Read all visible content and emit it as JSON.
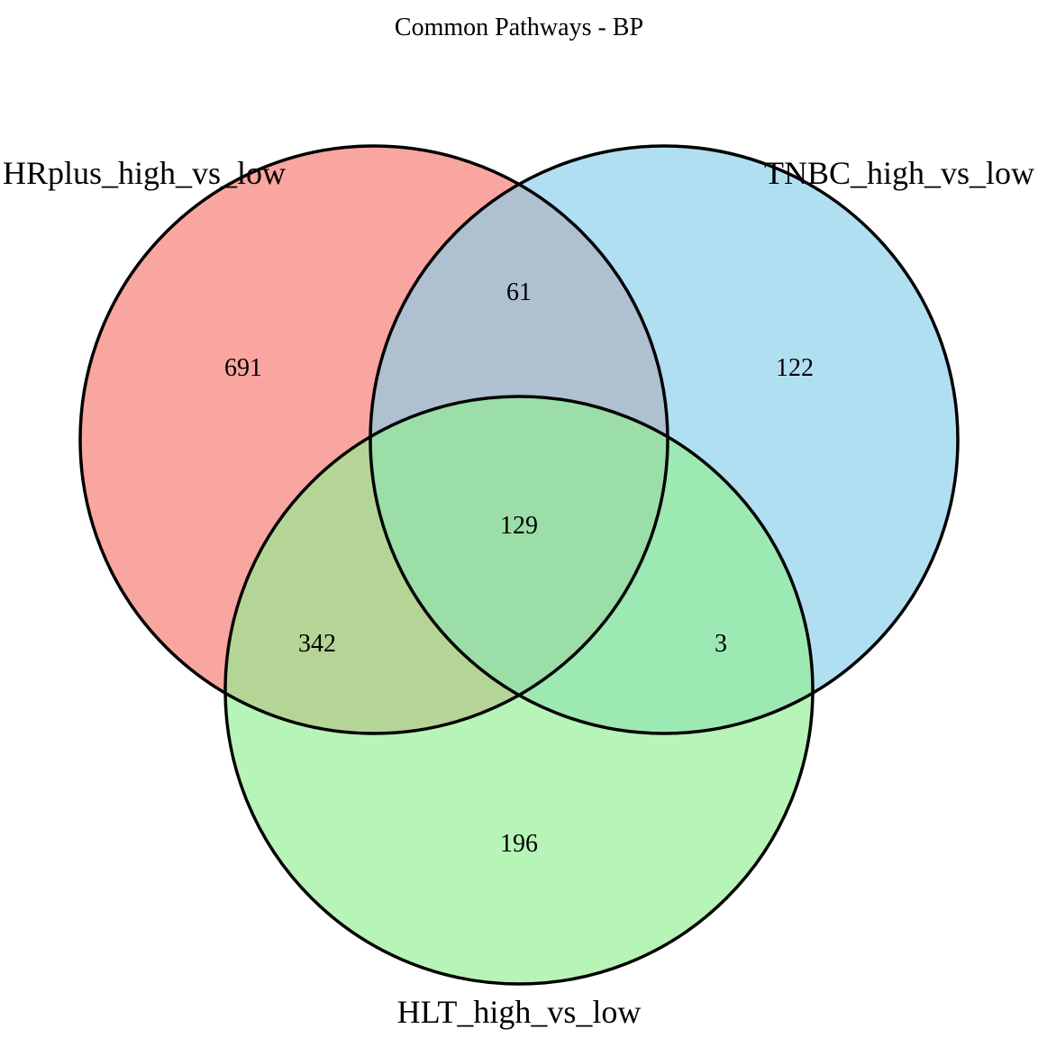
{
  "title": "Common Pathways - BP",
  "sets": [
    {
      "name": "HRplus_high_vs_low",
      "color": "#F8766D",
      "fill_opacity": 0.65
    },
    {
      "name": "TNBC_high_vs_low",
      "color": "#87CEEB",
      "fill_opacity": 0.65
    },
    {
      "name": "HLT_high_vs_low",
      "color": "#90EE90",
      "fill_opacity": 0.65
    }
  ],
  "regions": {
    "hrplus_only": "691",
    "tnbc_only": "122",
    "hlt_only": "196",
    "hrplus_tnbc": "61",
    "hrplus_hlt": "342",
    "tnbc_hlt": "3",
    "all_three": "129"
  },
  "outline_color": "#000000"
}
